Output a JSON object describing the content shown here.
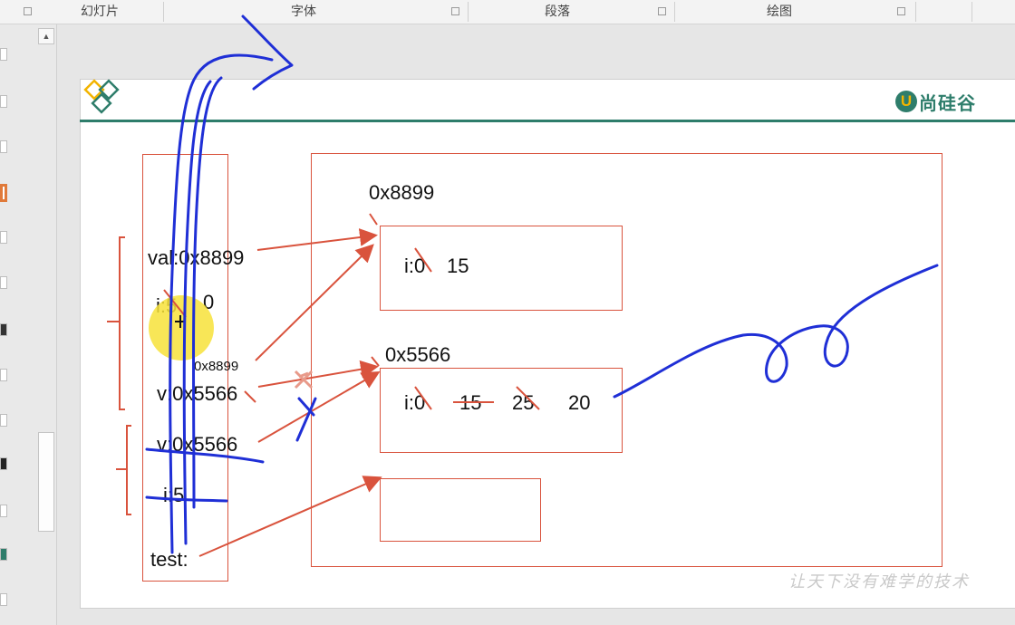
{
  "ribbon": {
    "groups": [
      "幻灯片",
      "字体",
      "段落",
      "绘图"
    ]
  },
  "slide": {
    "brand_text": "尚硅谷",
    "brand_mark": "U",
    "watermark": "让天下没有难学的技术",
    "stack_labels": {
      "val": "val:0x8899",
      "i": "i:5",
      "i_new": "0",
      "v_new_addr": "0x8899",
      "v_first": "v:0x5566",
      "v_second": "v:0x5566",
      "i_second": "i:5",
      "test": "test:"
    },
    "heap": {
      "obj1_addr": "0x8899",
      "obj1_i_old": "i:0",
      "obj1_i_new": "15",
      "obj2_addr": "0x5566",
      "obj2_i_old": "i:0",
      "obj2_v1": "15",
      "obj2_v2": "25",
      "obj2_v3": "20"
    }
  },
  "colors": {
    "box_border": "#d9533d",
    "arrow": "#d9533d",
    "ink_blue": "#1f2fd6",
    "brand": "#2e7d6b",
    "highlight": "#f7e23a"
  }
}
